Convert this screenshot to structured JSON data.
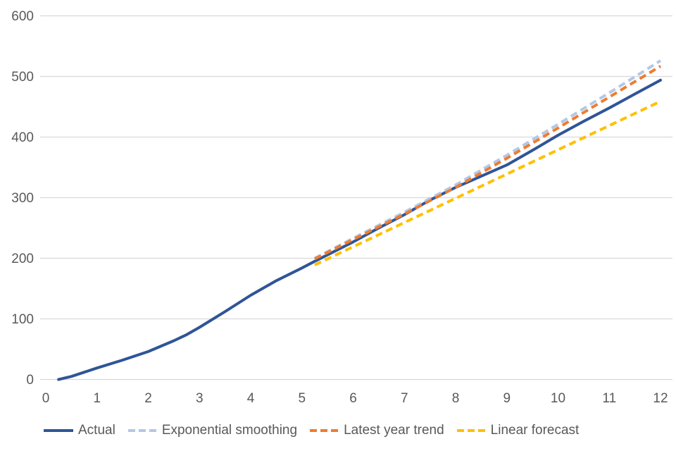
{
  "colors": {
    "background": "#FFFFFF",
    "gridline": "#D9D9D9",
    "axis_text": "#595959"
  },
  "chart_data": {
    "type": "line",
    "title": "",
    "xlabel": "",
    "ylabel": "",
    "xlim": [
      0,
      12
    ],
    "ylim": [
      0,
      600
    ],
    "grid": "horizontal",
    "legend_position": "bottom",
    "x_ticks": [
      0,
      1,
      2,
      3,
      4,
      5,
      6,
      7,
      8,
      9,
      10,
      11,
      12
    ],
    "y_ticks": [
      0,
      100,
      200,
      300,
      400,
      500,
      600
    ],
    "series": [
      {
        "name": "Actual",
        "style": "solid",
        "color": "#2F5597",
        "points": [
          [
            0.25,
            0
          ],
          [
            0.5,
            5
          ],
          [
            0.75,
            12
          ],
          [
            1,
            19
          ],
          [
            1.5,
            32
          ],
          [
            2,
            46
          ],
          [
            2.5,
            64
          ],
          [
            2.75,
            74
          ],
          [
            3,
            86
          ],
          [
            3.5,
            112
          ],
          [
            4,
            139
          ],
          [
            4.5,
            163
          ],
          [
            5,
            184
          ],
          [
            5.25,
            195
          ],
          [
            6,
            227
          ],
          [
            6.5,
            250
          ],
          [
            7,
            272
          ],
          [
            7.5,
            296
          ],
          [
            8,
            317
          ],
          [
            8.3,
            328
          ],
          [
            9,
            354
          ],
          [
            9.5,
            378
          ],
          [
            10,
            403
          ],
          [
            10.5,
            426
          ],
          [
            11,
            448
          ],
          [
            11.5,
            471
          ],
          [
            12,
            494
          ]
        ]
      },
      {
        "name": "Exponential smoothing",
        "style": "dashed",
        "color": "#B4C7E7",
        "points": [
          [
            5.25,
            200
          ],
          [
            6,
            233
          ],
          [
            7,
            276
          ],
          [
            8,
            321
          ],
          [
            9,
            370
          ],
          [
            10,
            421
          ],
          [
            11,
            473
          ],
          [
            12,
            526
          ]
        ]
      },
      {
        "name": "Latest year trend",
        "style": "dashed",
        "color": "#ED7D31",
        "points": [
          [
            5.25,
            199
          ],
          [
            6,
            231
          ],
          [
            7,
            273
          ],
          [
            8,
            317
          ],
          [
            9,
            365
          ],
          [
            10,
            415
          ],
          [
            11,
            466
          ],
          [
            12,
            517
          ]
        ]
      },
      {
        "name": "Linear forecast",
        "style": "dashed",
        "color": "#FFC000",
        "points": [
          [
            5.25,
            189
          ],
          [
            6,
            219
          ],
          [
            7,
            259
          ],
          [
            8,
            299
          ],
          [
            9,
            339
          ],
          [
            10,
            379
          ],
          [
            11,
            419
          ],
          [
            12,
            459
          ]
        ]
      }
    ]
  }
}
